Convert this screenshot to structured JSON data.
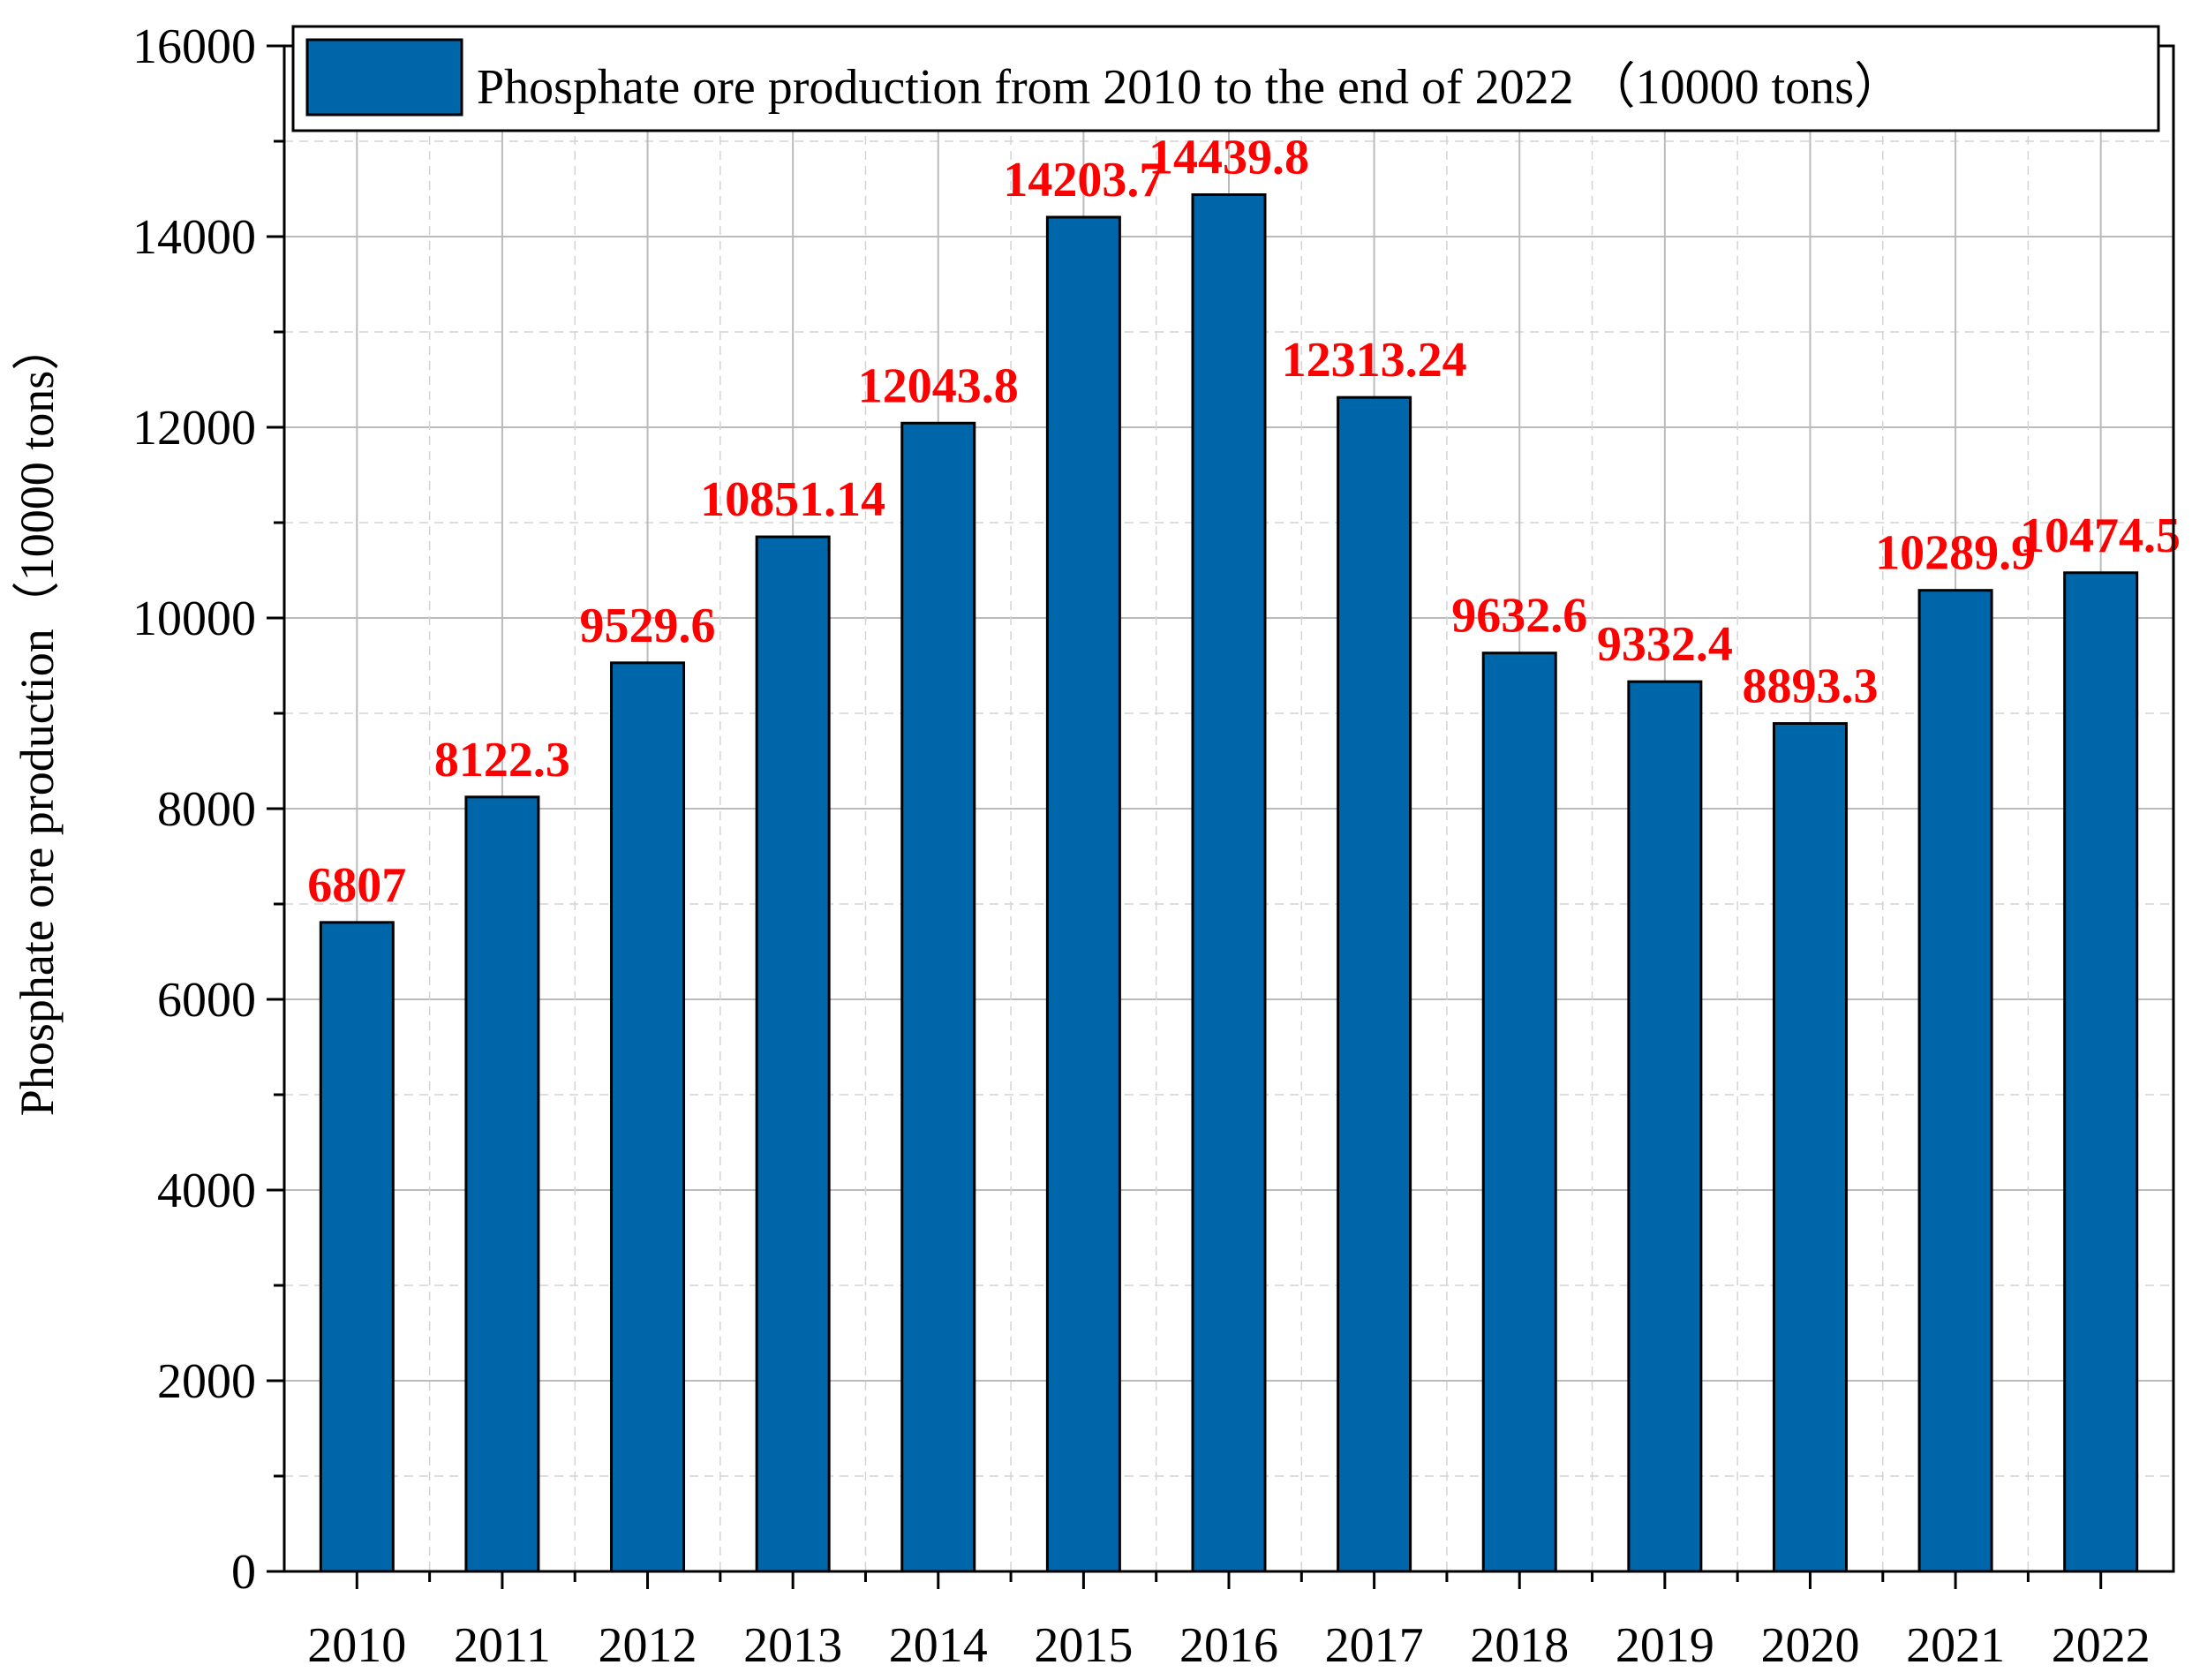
{
  "chart_data": {
    "type": "bar",
    "title": "",
    "xlabel": "",
    "ylabel": "Phosphate ore production（10000 tons）",
    "ylim": [
      0,
      16000
    ],
    "yticks": [
      0,
      2000,
      4000,
      6000,
      8000,
      10000,
      12000,
      14000,
      16000
    ],
    "grid": true,
    "legend_position": "top",
    "categories": [
      "2010",
      "2011",
      "2012",
      "2013",
      "2014",
      "2015",
      "2016",
      "2017",
      "2018",
      "2019",
      "2020",
      "2021",
      "2022"
    ],
    "series": [
      {
        "name": "Phosphate ore production from 2010 to the end of 2022 （10000 tons）",
        "color": "#0066aa",
        "values": [
          6807,
          8122.3,
          9529.6,
          10851.14,
          12043.8,
          14203.7,
          14439.8,
          12313.24,
          9632.6,
          9332.4,
          8893.3,
          10289.9,
          10474.5
        ],
        "labels": [
          "6807",
          "8122.3",
          "9529.6",
          "10851.14",
          "12043.8",
          "14203.7",
          "14439.8",
          "12313.24",
          "9632.6",
          "9332.4",
          "8893.3",
          "10289.9",
          "10474.5"
        ]
      }
    ],
    "label_color": "#ff0000"
  }
}
